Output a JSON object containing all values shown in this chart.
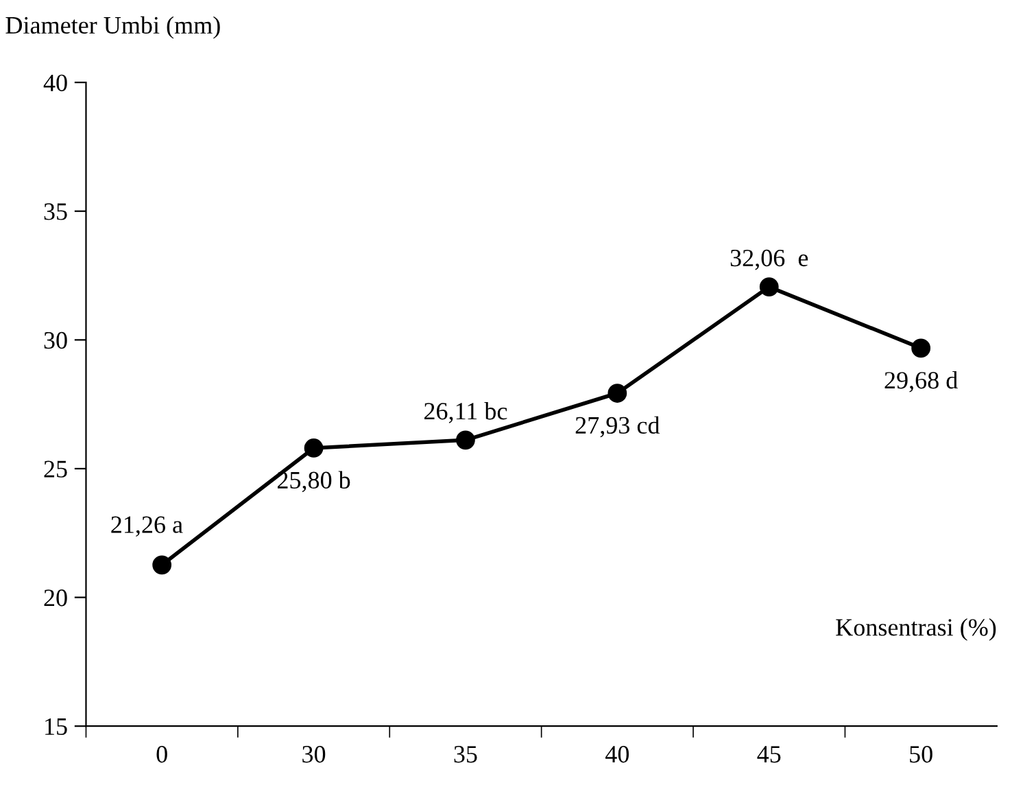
{
  "chart_data": {
    "type": "line",
    "xlabel": "Konsentrasi (%)",
    "ylabel": "Diameter Umbi (mm)",
    "categories": [
      "0",
      "30",
      "35",
      "40",
      "45",
      "50"
    ],
    "series": [
      {
        "color": "#000000",
        "values": [
          21.26,
          25.8,
          26.11,
          27.93,
          32.06,
          29.68
        ],
        "value_labels": [
          "21,26 a",
          "25,80 b",
          "26,11 bc",
          "27,93 cd",
          "32,06  e",
          "29,68 d"
        ]
      }
    ],
    "ylim": [
      15,
      40
    ],
    "yticks": [
      15,
      20,
      25,
      30,
      35,
      40
    ],
    "grid": false,
    "legend": false,
    "marker": "circle",
    "line_style": "solid"
  }
}
